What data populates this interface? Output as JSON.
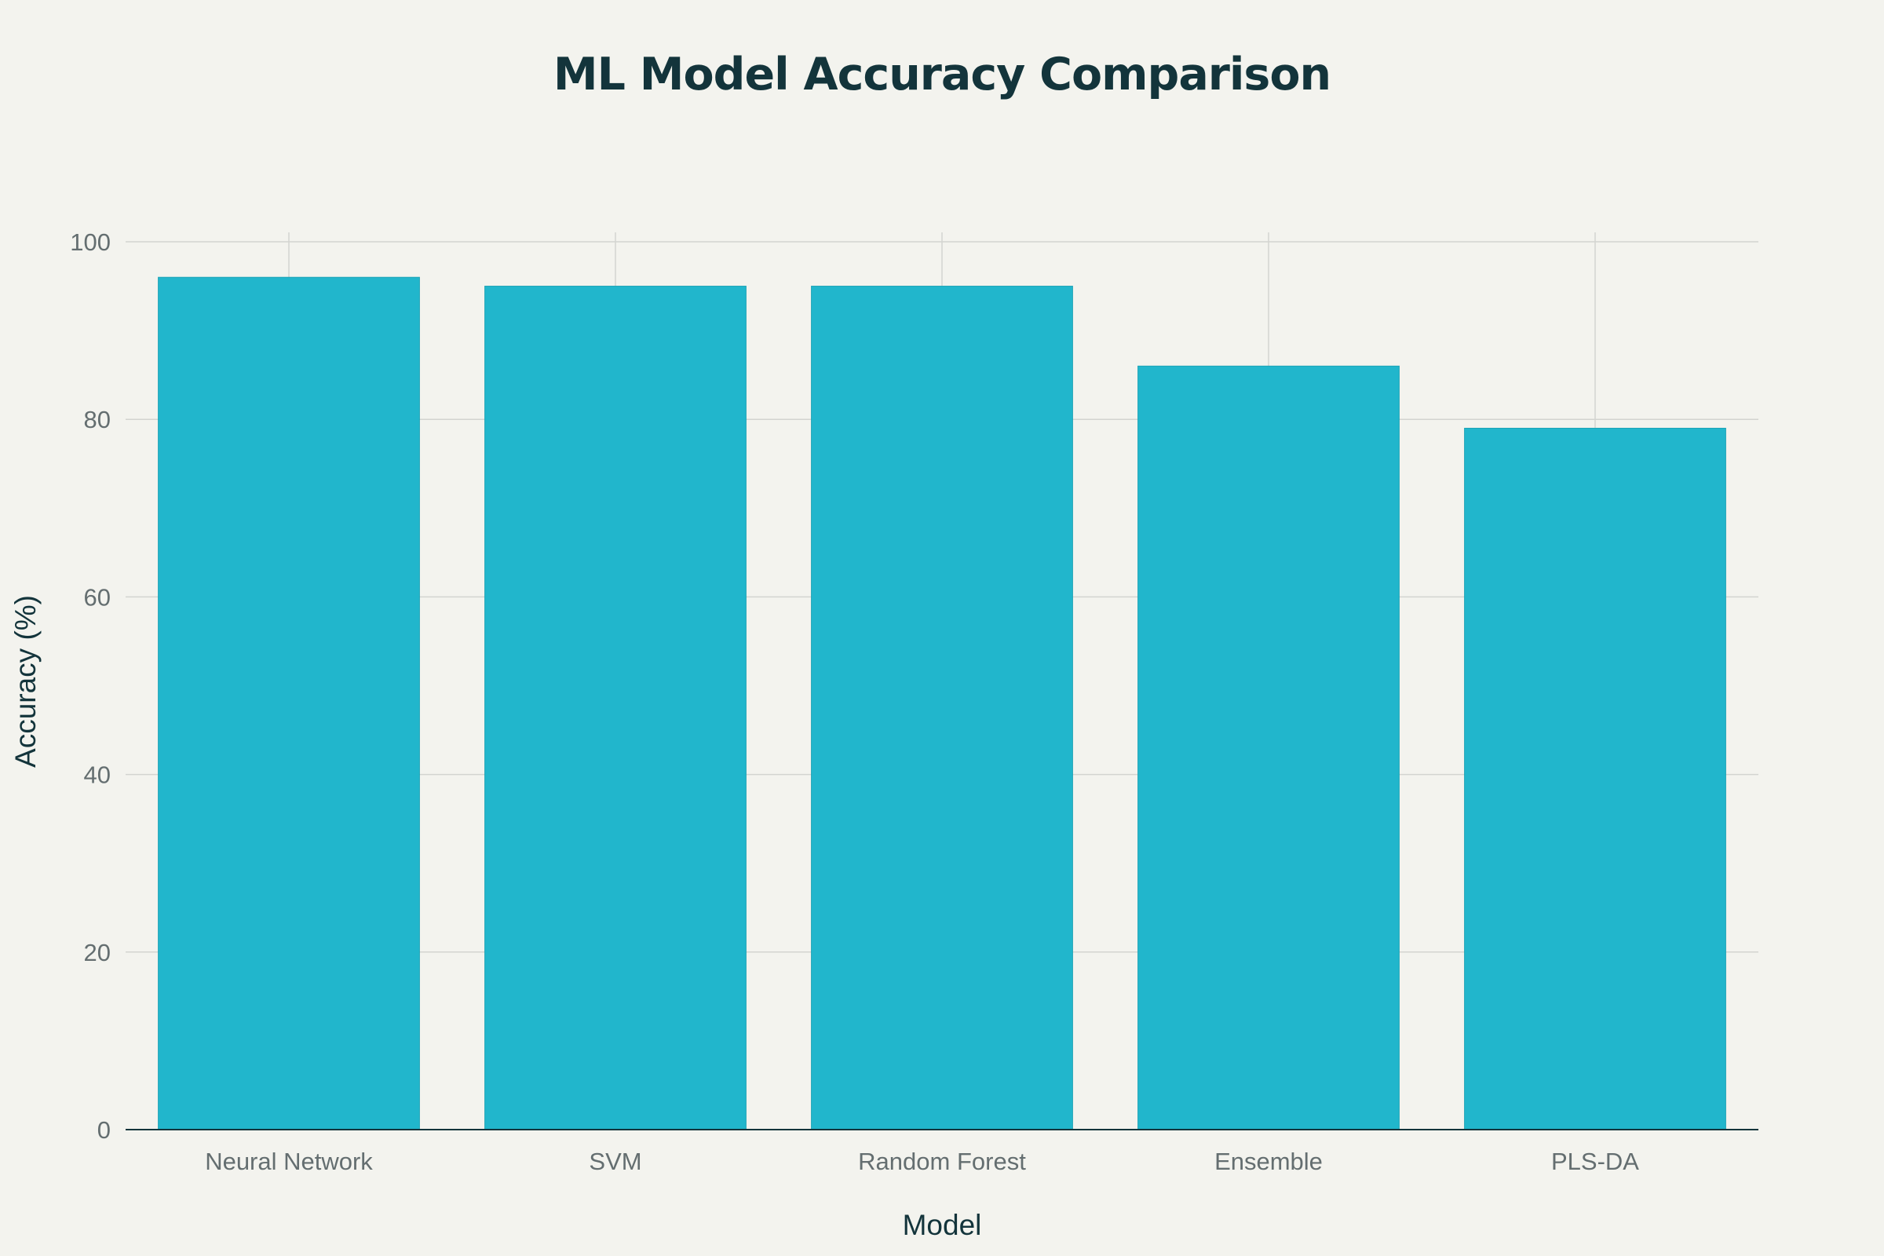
{
  "chart_data": {
    "type": "bar",
    "title": "ML Model Accuracy Comparison",
    "xlabel": "Model",
    "ylabel": "Accuracy (%)",
    "categories": [
      "Neural Network",
      "SVM",
      "Random Forest",
      "Ensemble",
      "PLS-DA"
    ],
    "values": [
      96,
      95,
      95,
      86,
      79
    ],
    "ylim": [
      0,
      100
    ],
    "yticks": [
      0,
      20,
      40,
      60,
      80,
      100
    ],
    "grid": true,
    "legend": "none",
    "bar_color": "#21b6cc"
  },
  "colors": {
    "background": "#f3f3ee",
    "title": "#13343b",
    "tick_label": "#646e70",
    "grid": "#d3d4d0",
    "axis_line": "#13343b"
  }
}
